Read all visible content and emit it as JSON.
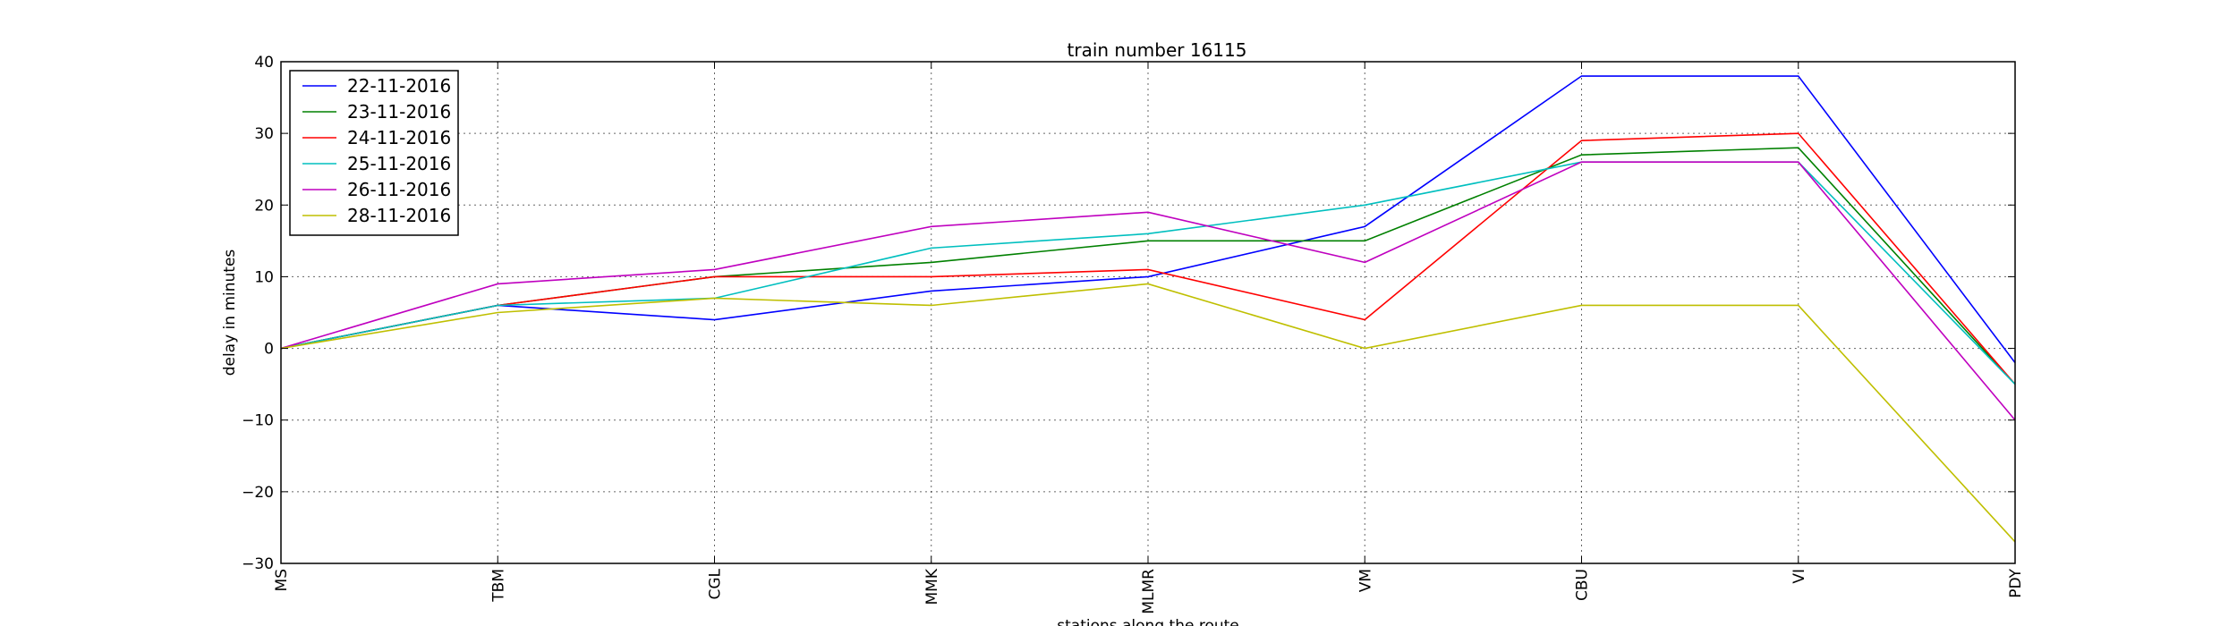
{
  "chart_data": {
    "type": "line",
    "title": "train number 16115",
    "xlabel": "stations along the route",
    "ylabel": "delay in minutes",
    "categories": [
      "MS",
      "TBM",
      "CGL",
      "MMK",
      "MLMR",
      "VM",
      "CBU",
      "VI",
      "PDY"
    ],
    "ylim": [
      -30,
      40
    ],
    "yticks": [
      -30,
      -20,
      -10,
      0,
      10,
      20,
      30,
      40
    ],
    "ytick_labels": [
      "−30",
      "−20",
      "−10",
      "0",
      "10",
      "20",
      "30",
      "40"
    ],
    "grid": true,
    "legend_position": "top-left",
    "series": [
      {
        "name": "22-11-2016",
        "color": "#0000ff",
        "values": [
          0,
          6,
          4,
          8,
          10,
          17,
          38,
          38,
          -2
        ]
      },
      {
        "name": "23-11-2016",
        "color": "#008000",
        "values": [
          0,
          6,
          10,
          12,
          15,
          15,
          27,
          28,
          -5
        ]
      },
      {
        "name": "24-11-2016",
        "color": "#ff0000",
        "values": [
          0,
          6,
          10,
          10,
          11,
          4,
          29,
          30,
          -5
        ]
      },
      {
        "name": "25-11-2016",
        "color": "#00bfbf",
        "values": [
          0,
          6,
          7,
          14,
          16,
          20,
          26,
          26,
          -5
        ]
      },
      {
        "name": "26-11-2016",
        "color": "#bf00bf",
        "values": [
          0,
          9,
          11,
          17,
          19,
          12,
          26,
          26,
          -10
        ]
      },
      {
        "name": "28-11-2016",
        "color": "#bfbf00",
        "values": [
          0,
          5,
          7,
          6,
          9,
          0,
          6,
          6,
          -27
        ]
      }
    ]
  }
}
